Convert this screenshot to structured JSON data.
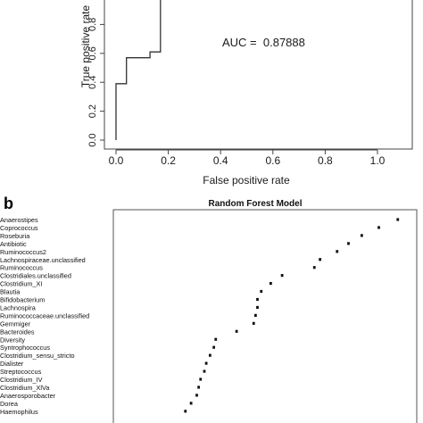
{
  "chart_data": [
    {
      "type": "line",
      "panel": "",
      "title": "",
      "xlabel": "False positive rate",
      "ylabel": "True positive rate",
      "xlim": [
        0,
        1.0
      ],
      "ylim": [
        0,
        1.0
      ],
      "x_ticks": [
        "0.0",
        "0.2",
        "0.4",
        "0.6",
        "0.8",
        "1.0"
      ],
      "y_ticks": [
        "0.0",
        "0.2",
        "0.4",
        "0.6",
        "0.8"
      ],
      "annotation": "AUC =  0.87888",
      "series": [
        {
          "x": [
            0,
            0,
            0.0,
            0.04,
            0.04,
            0.13,
            0.13,
            0.17,
            0.17
          ],
          "y": [
            0,
            0.39,
            0.39,
            0.39,
            0.57,
            0.57,
            0.61,
            0.61,
            1.0
          ]
        }
      ],
      "grid": false
    },
    {
      "type": "scatter",
      "panel": "b",
      "title": "Random Forest Model",
      "categories": [
        "Anaerostipes",
        "Coprococcus",
        "Roseburia",
        "Antibiotic",
        "Ruminococcus2",
        "Lachnospiraceae.unclassified",
        "Ruminococcus",
        "Clostridiales.unclassified",
        "Clostridium_XI",
        "Blautia",
        "Bifidobacterium",
        "Lachnospira",
        "Ruminococcaceae.unclassified",
        "Gemmiger",
        "Bacteroides",
        "Diversity",
        "Syntrophococcus",
        "Clostridium_sensu_stricto",
        "Dialister",
        "Streptococcus",
        "Clostridium_IV",
        "Clostridium_XlVa",
        "Anaerosporobacter",
        "Dorea",
        "Haemophilus"
      ],
      "values": [
        15.0,
        14.0,
        13.1,
        12.4,
        11.8,
        10.9,
        10.6,
        8.9,
        8.3,
        7.8,
        7.6,
        7.6,
        7.5,
        7.4,
        6.5,
        5.4,
        5.3,
        5.1,
        4.9,
        4.8,
        4.6,
        4.5,
        4.4,
        4.1,
        3.8
      ],
      "xlim": [
        0,
        16
      ],
      "grid": false
    }
  ],
  "colors": {
    "line": "#333333",
    "points": "#111111",
    "axis": "#444444"
  }
}
